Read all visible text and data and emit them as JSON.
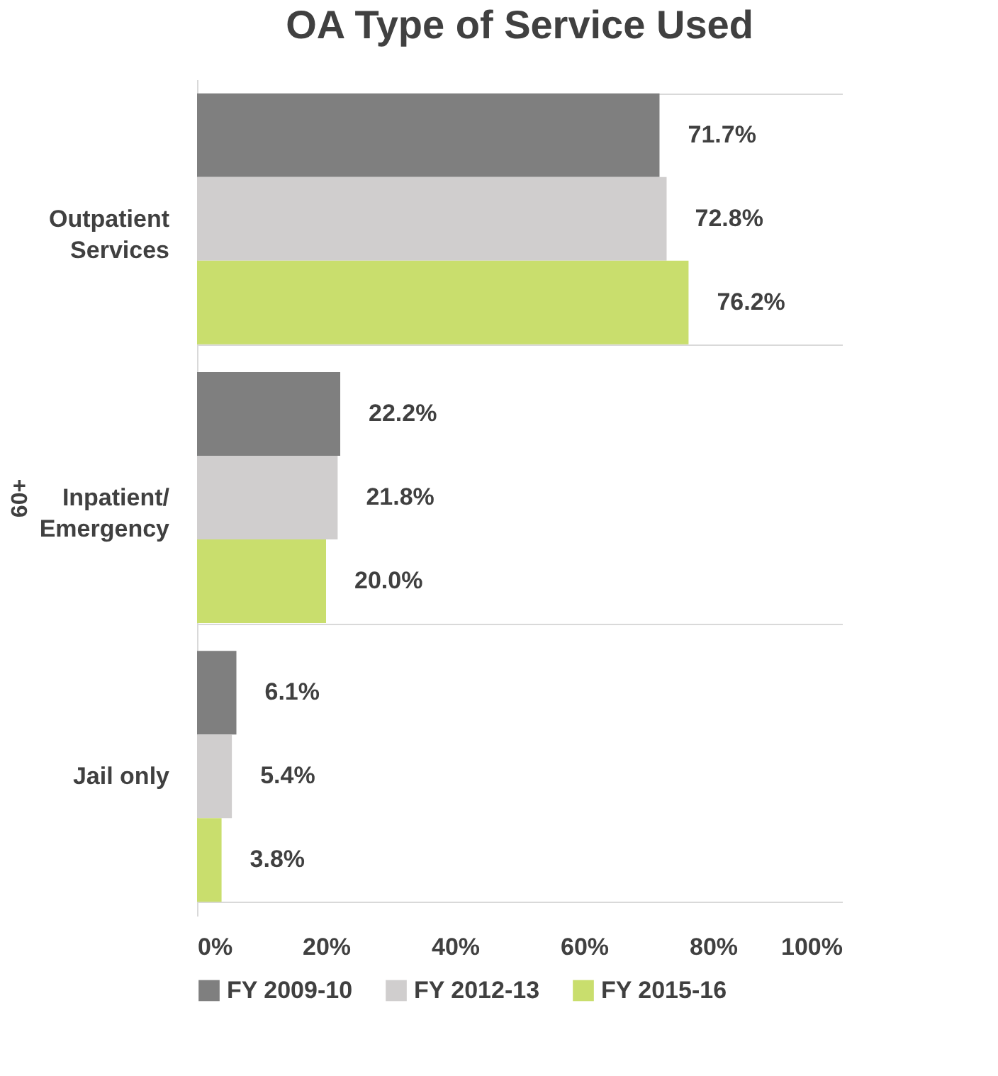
{
  "chart_data": {
    "type": "bar",
    "orientation": "horizontal",
    "title": "OA Type of Service Used",
    "ylabel": "60+",
    "categories": [
      "Outpatient Services",
      "Inpatient/ Emergency",
      "Jail only"
    ],
    "series": [
      {
        "name": "FY 2009-10",
        "color": "#7f7f7f",
        "values": [
          71.7,
          22.2,
          6.1
        ],
        "value_labels": [
          "71.7%",
          "22.2%",
          "6.1%"
        ]
      },
      {
        "name": "FY 2012-13",
        "color": "#d0cece",
        "values": [
          72.8,
          21.8,
          5.4
        ],
        "value_labels": [
          "72.8%",
          "21.8%",
          "5.4%"
        ]
      },
      {
        "name": "FY 2015-16",
        "color": "#c9de6d",
        "values": [
          76.2,
          20.0,
          3.8
        ],
        "value_labels": [
          "76.2%",
          "20.0%",
          "3.8%"
        ]
      }
    ],
    "xlim": [
      0,
      100
    ],
    "xticks": [
      {
        "value": 0,
        "label": "0%"
      },
      {
        "value": 20,
        "label": "20%"
      },
      {
        "value": 40,
        "label": "40%"
      },
      {
        "value": 60,
        "label": "60%"
      },
      {
        "value": 80,
        "label": "80%"
      },
      {
        "value": 100,
        "label": "100%"
      }
    ],
    "grid": false,
    "legend": "bottom"
  }
}
